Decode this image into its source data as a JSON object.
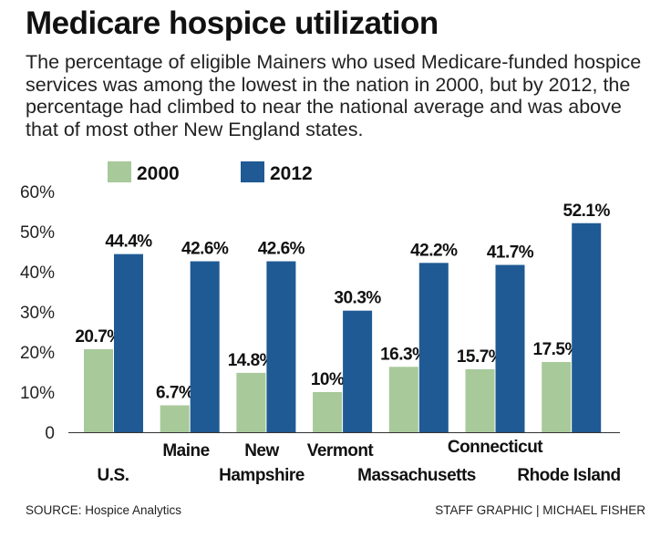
{
  "header": {
    "title": "Medicare hospice utilization",
    "subtitle": "The percentage of eligible Mainers who used Medicare-funded hospice services was among the lowest in the nation in 2000, but by 2012, the percentage had climbed to near the national average and was above that of most other New England states."
  },
  "footer": {
    "source": "SOURCE: Hospice Analytics",
    "credit": "STAFF GRAPHIC | MICHAEL FISHER"
  },
  "colors": {
    "series_2000": "#a8c99a",
    "series_2012": "#1f5a94",
    "axis": "#333333"
  },
  "chart_data": {
    "type": "bar",
    "categories": [
      [
        "U.S."
      ],
      [
        "Maine"
      ],
      [
        "New",
        "Hampshire"
      ],
      [
        "Vermont"
      ],
      [
        "Massachusetts"
      ],
      [
        "Connecticut"
      ],
      [
        "Rhode Island"
      ]
    ],
    "series": [
      {
        "name": "2000",
        "values": [
          20.7,
          6.7,
          14.8,
          10,
          16.3,
          15.7,
          17.5
        ],
        "labels": [
          "20.7%",
          "6.7%",
          "14.8%",
          "10%",
          "16.3%",
          "15.7%",
          "17.5%"
        ]
      },
      {
        "name": "2012",
        "values": [
          44.4,
          42.6,
          42.6,
          30.3,
          42.2,
          41.7,
          52.1
        ],
        "labels": [
          "44.4%",
          "42.6%",
          "42.6%",
          "30.3%",
          "42.2%",
          "41.7%",
          "52.1%"
        ]
      }
    ],
    "ylim": [
      0,
      60
    ],
    "yticks": [
      0,
      10,
      20,
      30,
      40,
      50,
      60
    ],
    "ytick_labels": [
      "0",
      "10%",
      "20%",
      "30%",
      "40%",
      "50%",
      "60%"
    ],
    "grid": false,
    "legend": "top-left"
  }
}
